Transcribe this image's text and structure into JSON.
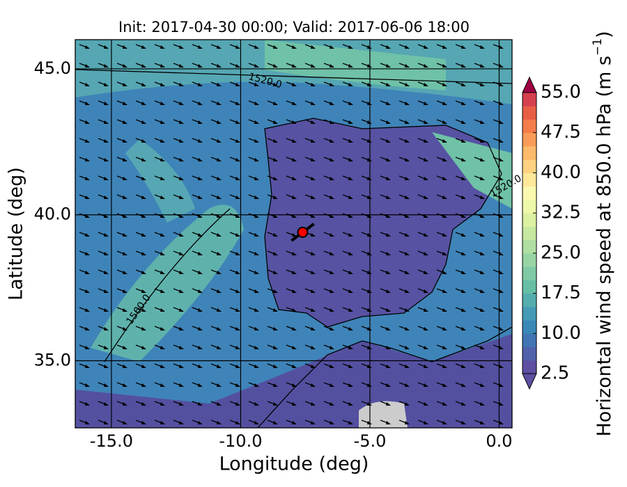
{
  "chart_data": {
    "type": "map",
    "title": "Init: 2017-04-30 00:00; Valid: 2017-06-06 18:00",
    "xlabel": "Longitude (deg)",
    "ylabel": "Latitude (deg)",
    "xlim": [
      -16.4,
      0.5
    ],
    "ylim": [
      32.7,
      46.0
    ],
    "xticks": [
      {
        "value": -15,
        "label": "-15.0"
      },
      {
        "value": -10,
        "label": "-10.0"
      },
      {
        "value": -5,
        "label": "-5.0"
      },
      {
        "value": 0,
        "label": "0.0"
      }
    ],
    "yticks": [
      {
        "value": 35,
        "label": "35.0"
      },
      {
        "value": 40,
        "label": "40.0"
      },
      {
        "value": 45,
        "label": "45.0"
      }
    ],
    "grid": true,
    "contour_labels": [
      "1520.0",
      "1560.0",
      "1520.0"
    ],
    "marker": {
      "lon": -7.6,
      "lat": 39.4,
      "color": "#ff0000"
    },
    "colorbar": {
      "label": "Horizontal wind speed at 850.0 hPa (m s",
      "label_sup": "−1",
      "label_end": ")",
      "lim": [
        2.5,
        55
      ],
      "ticks": [
        2.5,
        {
          "value": 10,
          "label": "10.0"
        },
        {
          "value": 17.5,
          "label": "17.5"
        },
        {
          "value": 25,
          "label": "25.0"
        },
        {
          "value": 32.5,
          "label": "32.5"
        },
        {
          "value": 40,
          "label": "40.0"
        },
        {
          "value": 47.5,
          "label": "47.5"
        },
        {
          "value": 55,
          "label": "55.0"
        }
      ],
      "colors": [
        "#5e4fa2",
        "#4f62aa",
        "#4175b4",
        "#3a88b8",
        "#439bb5",
        "#54aead",
        "#66bfa5",
        "#7fcaa5",
        "#98d5a4",
        "#b0dfa2",
        "#c7e89f",
        "#dcf1a1",
        "#eef8a9",
        "#fbf9b0",
        "#fee89a",
        "#fed280",
        "#fdba6b",
        "#fa9c58",
        "#f57d4a",
        "#e75e45",
        "#d53f4e"
      ],
      "under_color": "#5e4fa2",
      "over_color": "#9e0142"
    }
  }
}
